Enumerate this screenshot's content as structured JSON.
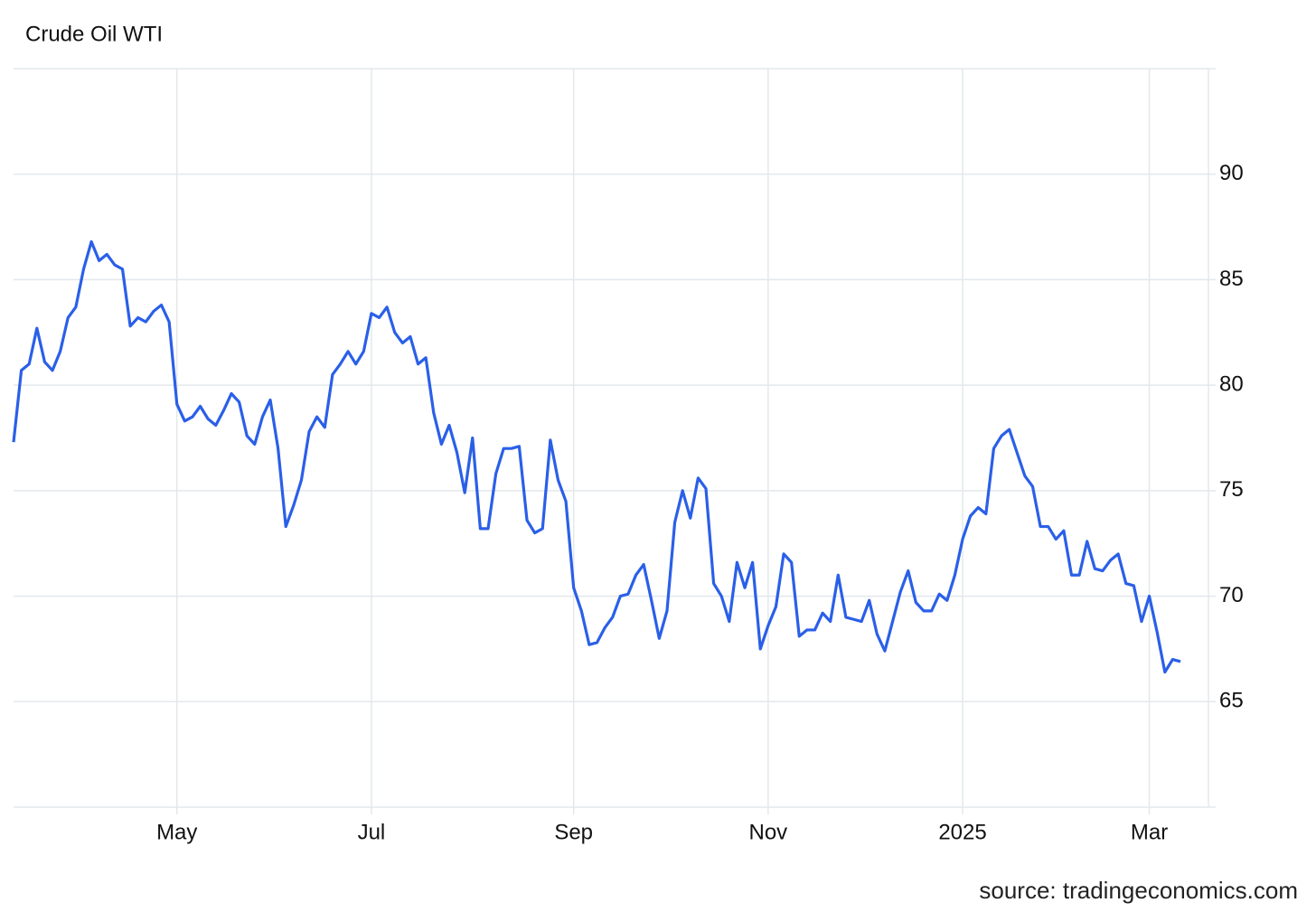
{
  "chart_data": {
    "type": "line",
    "title": "Crude Oil WTI",
    "source": "source: tradingeconomics.com",
    "categories": [
      null,
      null,
      null,
      null,
      null,
      null,
      null,
      null,
      null,
      null,
      null,
      null,
      null,
      null,
      null,
      null,
      null,
      null,
      null,
      null,
      null,
      "May",
      null,
      null,
      null,
      null,
      null,
      null,
      null,
      null,
      null,
      null,
      null,
      null,
      null,
      null,
      null,
      null,
      null,
      null,
      null,
      null,
      null,
      null,
      null,
      null,
      "Jul",
      null,
      null,
      null,
      null,
      null,
      null,
      null,
      null,
      null,
      null,
      null,
      null,
      null,
      null,
      null,
      null,
      null,
      null,
      null,
      null,
      null,
      null,
      null,
      null,
      null,
      "Sep",
      null,
      null,
      null,
      null,
      null,
      null,
      null,
      null,
      null,
      null,
      null,
      null,
      null,
      null,
      null,
      null,
      null,
      null,
      null,
      null,
      null,
      null,
      null,
      null,
      "Nov",
      null,
      null,
      null,
      null,
      null,
      null,
      null,
      null,
      null,
      null,
      null,
      null,
      null,
      null,
      null,
      null,
      null,
      null,
      null,
      null,
      null,
      null,
      null,
      null,
      "2025",
      null,
      null,
      null,
      null,
      null,
      null,
      null,
      null,
      null,
      null,
      null,
      null,
      null,
      null,
      null,
      null,
      null,
      null,
      null,
      null,
      null,
      null,
      null,
      "Mar",
      null,
      null,
      null,
      null
    ],
    "values": [
      77.3,
      80.7,
      81.0,
      82.7,
      81.1,
      80.7,
      81.6,
      83.2,
      83.7,
      85.5,
      86.8,
      85.9,
      86.2,
      85.7,
      85.5,
      82.8,
      83.2,
      83.0,
      83.5,
      83.8,
      83.0,
      79.1,
      78.3,
      78.5,
      79.0,
      78.4,
      78.1,
      78.8,
      79.6,
      79.2,
      77.6,
      77.2,
      78.5,
      79.3,
      77.0,
      73.3,
      74.3,
      75.5,
      77.8,
      78.5,
      78.0,
      80.5,
      81.0,
      81.6,
      81.0,
      81.6,
      83.4,
      83.2,
      83.7,
      82.5,
      82.0,
      82.3,
      81.0,
      81.3,
      78.7,
      77.2,
      78.1,
      76.8,
      74.9,
      77.5,
      73.2,
      73.2,
      75.8,
      77.0,
      77.0,
      77.1,
      73.6,
      73.0,
      73.2,
      77.4,
      75.5,
      74.5,
      70.4,
      69.3,
      67.7,
      67.8,
      68.5,
      69.0,
      70.0,
      70.1,
      71.0,
      71.5,
      69.8,
      68.0,
      69.3,
      73.5,
      75.0,
      73.7,
      75.6,
      75.1,
      70.6,
      70.0,
      68.8,
      71.6,
      70.4,
      71.6,
      67.5,
      68.6,
      69.5,
      72.0,
      71.6,
      68.1,
      68.4,
      68.4,
      69.2,
      68.8,
      71.0,
      69.0,
      68.9,
      68.8,
      69.8,
      68.2,
      67.4,
      68.8,
      70.2,
      71.2,
      69.7,
      69.3,
      69.3,
      70.1,
      69.8,
      71.0,
      72.7,
      73.8,
      74.2,
      73.9,
      77.0,
      77.6,
      77.9,
      76.8,
      75.7,
      75.2,
      73.3,
      73.3,
      72.7,
      73.1,
      71.0,
      71.0,
      72.6,
      71.3,
      71.2,
      71.7,
      72.0,
      70.6,
      70.5,
      68.8,
      70.0,
      68.3,
      66.4,
      67.0,
      66.9
    ],
    "color": "#2a5fe8",
    "ylim": [
      60,
      95
    ],
    "yticks": [
      65,
      70,
      75,
      80,
      85,
      90
    ],
    "grid": true
  }
}
